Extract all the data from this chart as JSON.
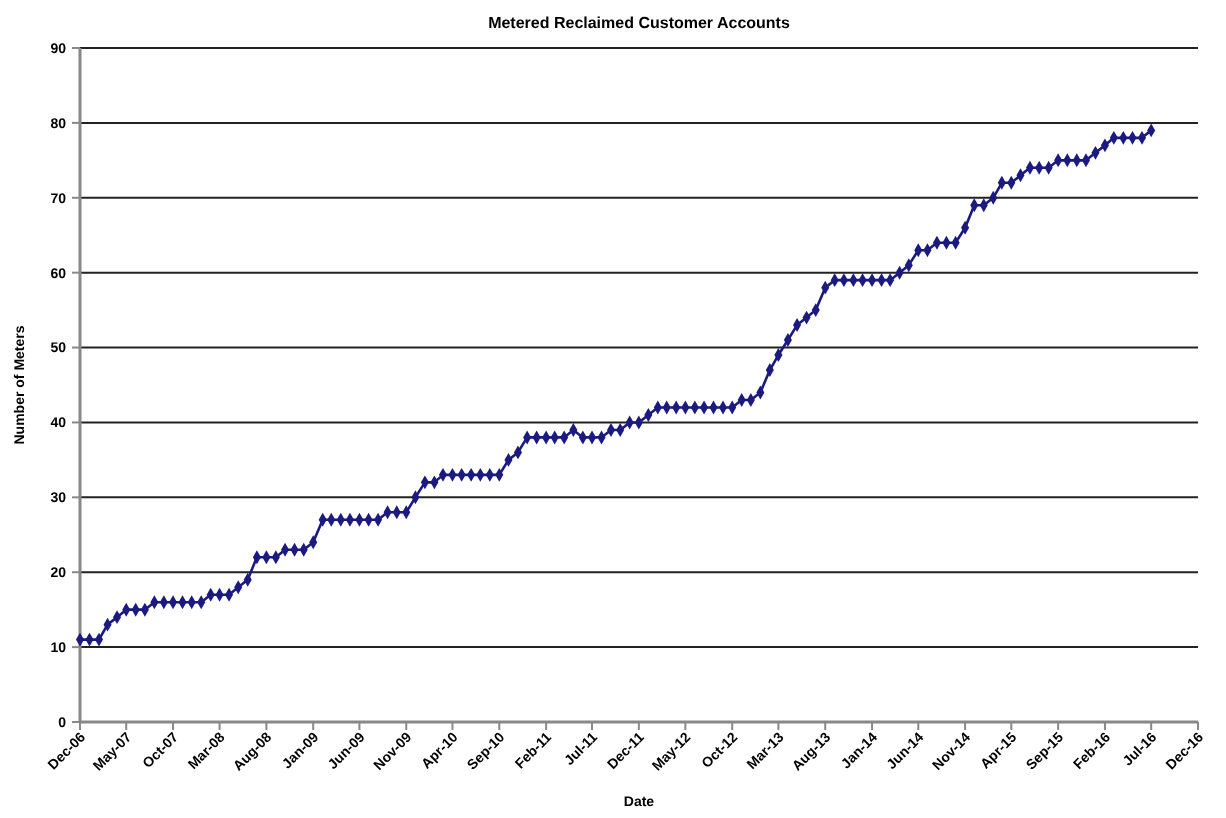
{
  "chart_data": {
    "type": "line",
    "title": "Metered Reclaimed Customer Accounts",
    "xlabel": "Date",
    "ylabel": "Number of Meters",
    "x": [
      "2006-12",
      "2007-01",
      "2007-02",
      "2007-03",
      "2007-04",
      "2007-05",
      "2007-06",
      "2007-07",
      "2007-08",
      "2007-09",
      "2007-10",
      "2007-11",
      "2007-12",
      "2008-01",
      "2008-02",
      "2008-03",
      "2008-04",
      "2008-05",
      "2008-06",
      "2008-07",
      "2008-08",
      "2008-09",
      "2008-10",
      "2008-11",
      "2008-12",
      "2009-01",
      "2009-02",
      "2009-03",
      "2009-04",
      "2009-05",
      "2009-06",
      "2009-07",
      "2009-08",
      "2009-09",
      "2009-10",
      "2009-11",
      "2009-12",
      "2010-01",
      "2010-02",
      "2010-03",
      "2010-04",
      "2010-05",
      "2010-06",
      "2010-07",
      "2010-08",
      "2010-09",
      "2010-10",
      "2010-11",
      "2010-12",
      "2011-01",
      "2011-02",
      "2011-03",
      "2011-04",
      "2011-05",
      "2011-06",
      "2011-07",
      "2011-08",
      "2011-09",
      "2011-10",
      "2011-11",
      "2011-12",
      "2012-01",
      "2012-02",
      "2012-03",
      "2012-04",
      "2012-05",
      "2012-06",
      "2012-07",
      "2012-08",
      "2012-09",
      "2012-10",
      "2012-11",
      "2012-12",
      "2013-01",
      "2013-02",
      "2013-03",
      "2013-04",
      "2013-05",
      "2013-06",
      "2013-07",
      "2013-08",
      "2013-09",
      "2013-10",
      "2013-11",
      "2013-12",
      "2014-01",
      "2014-02",
      "2014-03",
      "2014-04",
      "2014-05",
      "2014-06",
      "2014-07",
      "2014-08",
      "2014-09",
      "2014-10",
      "2014-11",
      "2014-12",
      "2015-01",
      "2015-02",
      "2015-03",
      "2015-04",
      "2015-05",
      "2015-06",
      "2015-07",
      "2015-08",
      "2015-09",
      "2015-10",
      "2015-11",
      "2015-12",
      "2016-01",
      "2016-02",
      "2016-03",
      "2016-04",
      "2016-05",
      "2016-06",
      "2016-07"
    ],
    "series": [
      {
        "color": "#1a1a80",
        "values": [
          11,
          11,
          11,
          13,
          14,
          15,
          15,
          15,
          16,
          16,
          16,
          16,
          16,
          16,
          17,
          17,
          17,
          18,
          19,
          22,
          22,
          22,
          23,
          23,
          23,
          24,
          27,
          27,
          27,
          27,
          27,
          27,
          27,
          28,
          28,
          28,
          30,
          32,
          32,
          33,
          33,
          33,
          33,
          33,
          33,
          33,
          35,
          36,
          38,
          38,
          38,
          38,
          38,
          39,
          38,
          38,
          38,
          39,
          39,
          40,
          40,
          41,
          42,
          42,
          42,
          42,
          42,
          42,
          42,
          42,
          42,
          43,
          43,
          44,
          47,
          49,
          51,
          53,
          54,
          55,
          58,
          59,
          59,
          59,
          59,
          59,
          59,
          59,
          60,
          61,
          63,
          63,
          64,
          64,
          64,
          66,
          69,
          69,
          70,
          72,
          72,
          73,
          74,
          74,
          74,
          75,
          75,
          75,
          75,
          76,
          77,
          78,
          78,
          78,
          78,
          79
        ]
      }
    ],
    "xlim": [
      "2006-12",
      "2016-12"
    ],
    "xticks": [
      {
        "value": "2006-12",
        "label": "Dec-06"
      },
      {
        "value": "2007-05",
        "label": "May-07"
      },
      {
        "value": "2007-10",
        "label": "Oct-07"
      },
      {
        "value": "2008-03",
        "label": "Mar-08"
      },
      {
        "value": "2008-08",
        "label": "Aug-08"
      },
      {
        "value": "2009-01",
        "label": "Jan-09"
      },
      {
        "value": "2009-06",
        "label": "Jun-09"
      },
      {
        "value": "2009-11",
        "label": "Nov-09"
      },
      {
        "value": "2010-04",
        "label": "Apr-10"
      },
      {
        "value": "2010-09",
        "label": "Sep-10"
      },
      {
        "value": "2011-02",
        "label": "Feb-11"
      },
      {
        "value": "2011-07",
        "label": "Jul-11"
      },
      {
        "value": "2011-12",
        "label": "Dec-11"
      },
      {
        "value": "2012-05",
        "label": "May-12"
      },
      {
        "value": "2012-10",
        "label": "Oct-12"
      },
      {
        "value": "2013-03",
        "label": "Mar-13"
      },
      {
        "value": "2013-08",
        "label": "Aug-13"
      },
      {
        "value": "2014-01",
        "label": "Jan-14"
      },
      {
        "value": "2014-06",
        "label": "Jun-14"
      },
      {
        "value": "2014-11",
        "label": "Nov-14"
      },
      {
        "value": "2015-04",
        "label": "Apr-15"
      },
      {
        "value": "2015-09",
        "label": "Sep-15"
      },
      {
        "value": "2016-02",
        "label": "Feb-16"
      },
      {
        "value": "2016-07",
        "label": "Jul-16"
      },
      {
        "value": "2016-12",
        "label": "Dec-16"
      }
    ],
    "ylim": [
      0,
      90
    ],
    "yticks": [
      0,
      10,
      20,
      30,
      40,
      50,
      60,
      70,
      80,
      90
    ],
    "grid": "y",
    "marker": "diamond",
    "line_style": "solid"
  }
}
